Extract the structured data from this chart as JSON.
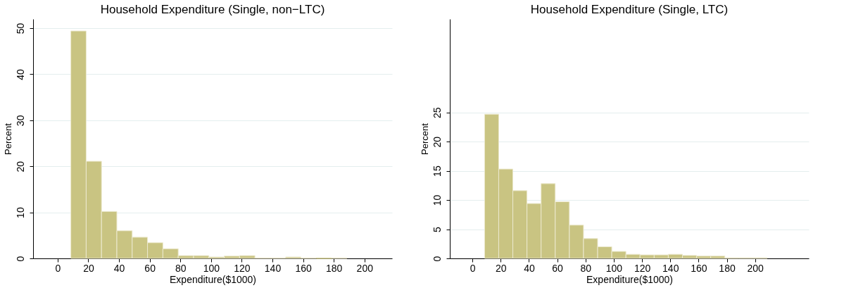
{
  "chart_data": [
    {
      "type": "histogram",
      "title": "Household Expenditure (Single, non−LTC)",
      "xlabel": "Expenditure($1000)",
      "ylabel": "Percent",
      "bins": [
        8.6,
        18.6,
        28.6,
        38.6,
        48.6,
        58.6,
        68.6,
        78.6,
        88.6,
        98.6,
        108.6,
        118.6,
        128.6,
        138.6,
        148.6,
        158.6,
        168.6,
        178.6,
        188.6
      ],
      "values": [
        49.4,
        21.1,
        10.2,
        6.0,
        4.6,
        3.4,
        2.1,
        0.6,
        0.6,
        0.3,
        0.5,
        0.6,
        0.1,
        0.1,
        0.3,
        0.1,
        0.0,
        0.1
      ],
      "color": "#c9c482",
      "xlim": [
        -16,
        218
      ],
      "xticks": [
        0,
        20,
        40,
        60,
        80,
        100,
        120,
        140,
        160,
        180,
        200
      ],
      "ylim": [
        0,
        52
      ],
      "yticks": [
        0,
        10,
        20,
        30,
        40,
        50
      ],
      "grid": "y"
    },
    {
      "type": "histogram",
      "title": "Household Expenditure (Single, LTC)",
      "xlabel": "Expenditure($1000)",
      "ylabel": "Percent",
      "bins": [
        8.6,
        18.6,
        28.6,
        38.6,
        48.6,
        58.6,
        68.6,
        78.6,
        88.6,
        98.6,
        108.6,
        118.6,
        128.6,
        138.6,
        148.6,
        158.6,
        168.6,
        178.6,
        188.6,
        198.6,
        208.6
      ],
      "values": [
        24.7,
        15.3,
        11.6,
        9.4,
        12.8,
        9.7,
        5.7,
        3.4,
        2.0,
        1.2,
        0.7,
        0.6,
        0.6,
        0.7,
        0.5,
        0.4,
        0.4,
        0.1,
        0.1,
        0.1
      ],
      "color": "#c9c482",
      "xlim": [
        -16,
        238
      ],
      "xticks": [
        0,
        20,
        40,
        60,
        80,
        100,
        120,
        140,
        160,
        180,
        200
      ],
      "ylim": [
        0,
        41
      ],
      "yticks": [
        0,
        5,
        10,
        15,
        20,
        25
      ],
      "grid": "y"
    }
  ]
}
